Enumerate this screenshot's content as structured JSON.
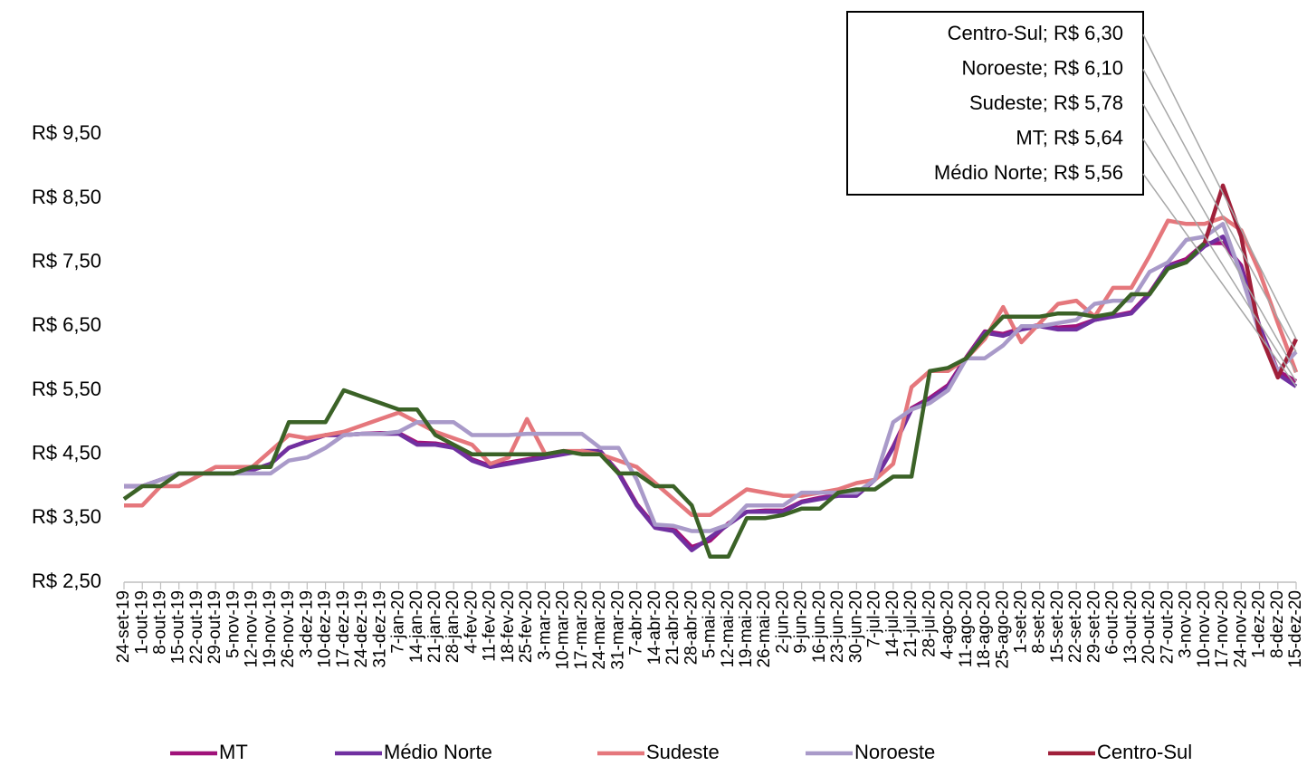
{
  "chart_data": {
    "type": "line",
    "categories": [
      "24-set-19",
      "1-out-19",
      "8-out-19",
      "15-out-19",
      "22-out-19",
      "29-out-19",
      "5-nov-19",
      "12-nov-19",
      "19-nov-19",
      "26-nov-19",
      "3-dez-19",
      "10-dez-19",
      "17-dez-19",
      "24-dez-19",
      "31-dez-19",
      "7-jan-20",
      "14-jan-20",
      "21-jan-20",
      "28-jan-20",
      "4-fev-20",
      "11-fev-20",
      "18-fev-20",
      "25-fev-20",
      "3-mar-20",
      "10-mar-20",
      "17-mar-20",
      "24-mar-20",
      "31-mar-20",
      "7-abr-20",
      "14-abr-20",
      "21-abr-20",
      "28-abr-20",
      "5-mai-20",
      "12-mai-20",
      "19-mai-20",
      "26-mai-20",
      "2-jun-20",
      "9-jun-20",
      "16-jun-20",
      "23-jun-20",
      "30-jun-20",
      "7-jul-20",
      "14-jul-20",
      "21-jul-20",
      "28-jul-20",
      "4-ago-20",
      "11-ago-20",
      "18-ago-20",
      "25-ago-20",
      "1-set-20",
      "8-set-20",
      "15-set-20",
      "22-set-20",
      "29-set-20",
      "6-out-20",
      "13-out-20",
      "20-out-20",
      "27-out-20",
      "3-nov-20",
      "10-nov-20",
      "17-nov-20",
      "24-nov-20",
      "1-dez-20",
      "8-dez-20",
      "15-dez-20"
    ],
    "series": [
      {
        "name": "MT",
        "color": "#a0127a",
        "end_label": "MT; R$ 5,64",
        "values": [
          4.0,
          4.0,
          4.1,
          4.2,
          4.2,
          4.2,
          4.2,
          4.25,
          4.35,
          4.6,
          4.7,
          4.8,
          4.8,
          4.82,
          4.83,
          4.83,
          4.68,
          4.67,
          4.62,
          4.42,
          4.32,
          4.37,
          4.42,
          4.47,
          4.52,
          4.55,
          4.55,
          4.22,
          3.72,
          3.38,
          3.34,
          3.05,
          3.15,
          3.42,
          3.6,
          3.62,
          3.62,
          3.76,
          3.82,
          3.86,
          3.88,
          4.1,
          4.62,
          5.22,
          5.38,
          5.58,
          6.02,
          6.42,
          6.38,
          6.47,
          6.52,
          6.48,
          6.5,
          6.6,
          6.66,
          6.72,
          7.02,
          7.45,
          7.55,
          7.8,
          7.8,
          7.45,
          6.5,
          5.8,
          5.64
        ]
      },
      {
        "name": "Médio Norte",
        "color": "#7030a0",
        "end_label": "Médio Norte; R$ 5,56",
        "values": [
          4.0,
          4.0,
          4.1,
          4.2,
          4.2,
          4.2,
          4.2,
          4.25,
          4.35,
          4.6,
          4.7,
          4.8,
          4.8,
          4.82,
          4.82,
          4.82,
          4.65,
          4.65,
          4.6,
          4.4,
          4.3,
          4.35,
          4.4,
          4.45,
          4.5,
          4.55,
          4.55,
          4.2,
          3.7,
          3.35,
          3.3,
          3.0,
          3.2,
          3.4,
          3.6,
          3.6,
          3.6,
          3.75,
          3.8,
          3.85,
          3.85,
          4.1,
          4.6,
          5.2,
          5.35,
          5.55,
          6.0,
          6.4,
          6.35,
          6.45,
          6.5,
          6.45,
          6.45,
          6.6,
          6.65,
          6.7,
          7.0,
          7.45,
          7.5,
          7.75,
          7.9,
          7.4,
          6.5,
          5.75,
          5.56
        ]
      },
      {
        "name": "Sudeste",
        "color": "#e5777c",
        "end_label": "Sudeste; R$ 5,78",
        "values": [
          3.7,
          3.7,
          4.0,
          4.0,
          4.15,
          4.3,
          4.3,
          4.3,
          4.55,
          4.8,
          4.75,
          4.8,
          4.85,
          4.95,
          5.05,
          5.15,
          5.0,
          4.85,
          4.75,
          4.65,
          4.35,
          4.45,
          5.05,
          4.5,
          4.55,
          4.55,
          4.5,
          4.4,
          4.3,
          4.05,
          3.8,
          3.55,
          3.55,
          3.75,
          3.95,
          3.9,
          3.85,
          3.85,
          3.9,
          3.95,
          4.05,
          4.1,
          4.35,
          5.55,
          5.8,
          5.8,
          6.0,
          6.3,
          6.8,
          6.25,
          6.55,
          6.85,
          6.9,
          6.65,
          7.1,
          7.1,
          7.6,
          8.15,
          8.1,
          8.1,
          8.2,
          8.0,
          7.35,
          6.55,
          5.78
        ]
      },
      {
        "name": "Noroeste",
        "color": "#a99ac9",
        "end_label": "Noroeste; R$ 6,10",
        "values": [
          4.0,
          4.0,
          4.1,
          4.2,
          4.2,
          4.2,
          4.2,
          4.2,
          4.2,
          4.4,
          4.45,
          4.6,
          4.8,
          4.82,
          4.82,
          4.85,
          5.0,
          5.0,
          5.0,
          4.8,
          4.8,
          4.8,
          4.82,
          4.82,
          4.82,
          4.82,
          4.6,
          4.6,
          4.1,
          3.4,
          3.38,
          3.3,
          3.3,
          3.4,
          3.7,
          3.7,
          3.7,
          3.9,
          3.9,
          3.9,
          3.9,
          4.1,
          5.0,
          5.2,
          5.3,
          5.5,
          6.0,
          6.0,
          6.2,
          6.5,
          6.5,
          6.55,
          6.6,
          6.85,
          6.9,
          6.9,
          7.35,
          7.5,
          7.85,
          7.9,
          8.1,
          7.3,
          6.4,
          5.8,
          6.1
        ]
      },
      {
        "name": "Centro-Sul",
        "color": "#a0203a",
        "early_color": "#3b6227",
        "early_until_index": 59,
        "end_label": "Centro-Sul; R$ 6,30",
        "values": [
          3.8,
          4.0,
          4.0,
          4.2,
          4.2,
          4.2,
          4.2,
          4.3,
          4.3,
          5.0,
          5.0,
          5.0,
          5.5,
          5.4,
          5.3,
          5.2,
          5.2,
          4.8,
          4.65,
          4.5,
          4.5,
          4.5,
          4.5,
          4.5,
          4.55,
          4.5,
          4.5,
          4.2,
          4.2,
          4.0,
          4.0,
          3.7,
          2.9,
          2.9,
          3.5,
          3.5,
          3.55,
          3.65,
          3.65,
          3.9,
          3.95,
          3.95,
          4.15,
          4.15,
          5.8,
          5.85,
          6.0,
          6.35,
          6.65,
          6.65,
          6.65,
          6.7,
          6.7,
          6.65,
          6.7,
          7.0,
          7.0,
          7.4,
          7.5,
          7.8,
          8.7,
          7.9,
          6.4,
          5.7,
          6.3
        ]
      }
    ],
    "ylim": [
      2.5,
      10
    ],
    "yticks": [
      {
        "value": 2.5,
        "label": "R$ 2,50"
      },
      {
        "value": 3.5,
        "label": "R$ 3,50"
      },
      {
        "value": 4.5,
        "label": "R$ 4,50"
      },
      {
        "value": 5.5,
        "label": "R$ 5,50"
      },
      {
        "value": 6.5,
        "label": "R$ 6,50"
      },
      {
        "value": 7.5,
        "label": "R$ 7,50"
      },
      {
        "value": 8.5,
        "label": "R$ 8,50"
      },
      {
        "value": 9.5,
        "label": "R$ 9,50"
      }
    ],
    "grid": false,
    "legend": "bottom"
  }
}
